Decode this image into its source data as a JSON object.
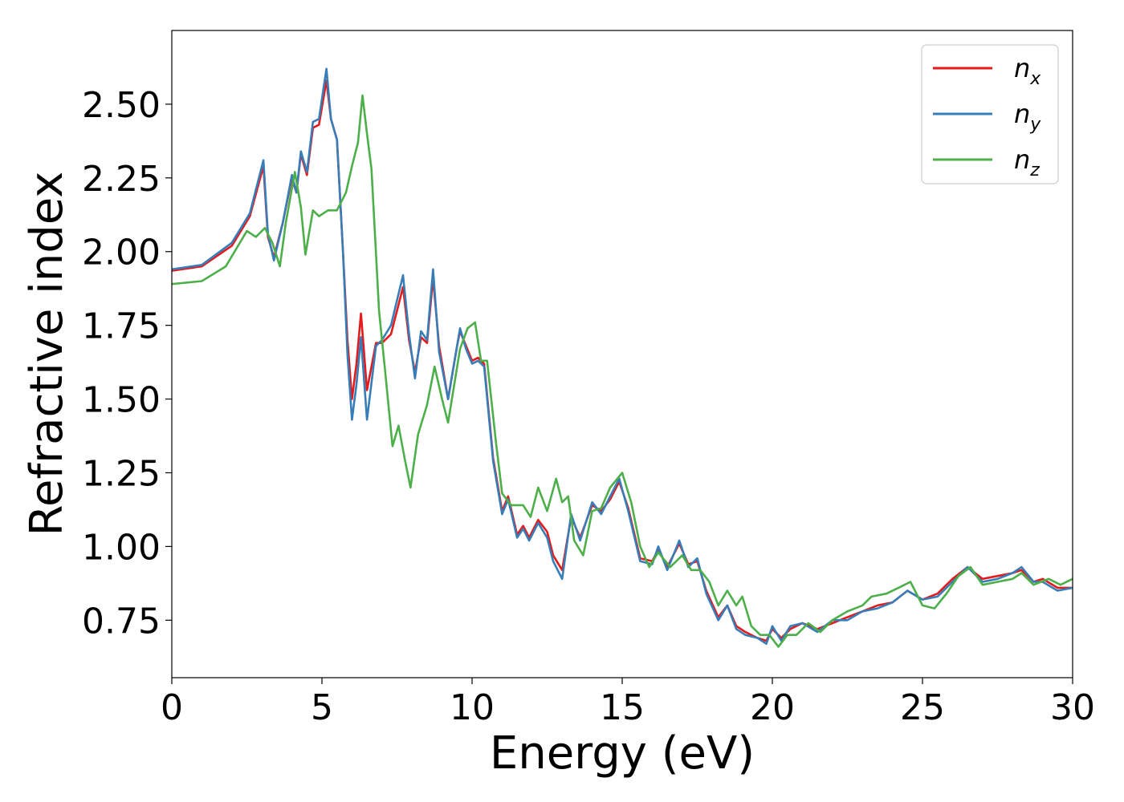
{
  "chart_data": {
    "type": "line",
    "xlabel": "Energy (eV)",
    "ylabel": "Refractive index",
    "xlim": [
      0,
      30
    ],
    "ylim": [
      0.555,
      2.75
    ],
    "xticks": [
      0,
      5,
      10,
      15,
      20,
      25,
      30
    ],
    "xtick_labels": [
      "0",
      "5",
      "10",
      "15",
      "20",
      "25",
      "30"
    ],
    "yticks": [
      0.75,
      1.0,
      1.25,
      1.5,
      1.75,
      2.0,
      2.25,
      2.5
    ],
    "ytick_labels": [
      "0.75",
      "1.00",
      "1.25",
      "1.50",
      "1.75",
      "2.00",
      "2.25",
      "2.50"
    ],
    "grid": false,
    "legend": {
      "placement": "top-right"
    },
    "series": [
      {
        "name": "n_x",
        "legend_base": "n",
        "legend_sub": "x",
        "color": "#e41a1c",
        "points": [
          [
            0,
            1.935
          ],
          [
            1,
            1.95
          ],
          [
            2,
            2.02
          ],
          [
            2.6,
            2.12
          ],
          [
            3.05,
            2.29
          ],
          [
            3.2,
            2.05
          ],
          [
            3.4,
            1.98
          ],
          [
            3.7,
            2.1
          ],
          [
            4.0,
            2.25
          ],
          [
            4.15,
            2.2
          ],
          [
            4.3,
            2.33
          ],
          [
            4.5,
            2.26
          ],
          [
            4.7,
            2.42
          ],
          [
            4.9,
            2.43
          ],
          [
            5.15,
            2.58
          ],
          [
            5.3,
            2.45
          ],
          [
            5.5,
            2.38
          ],
          [
            5.7,
            2.0
          ],
          [
            5.85,
            1.7
          ],
          [
            6.0,
            1.5
          ],
          [
            6.15,
            1.62
          ],
          [
            6.3,
            1.79
          ],
          [
            6.5,
            1.53
          ],
          [
            6.8,
            1.69
          ],
          [
            7.0,
            1.69
          ],
          [
            7.3,
            1.72
          ],
          [
            7.7,
            1.88
          ],
          [
            7.9,
            1.7
          ],
          [
            8.1,
            1.59
          ],
          [
            8.3,
            1.71
          ],
          [
            8.5,
            1.69
          ],
          [
            8.7,
            1.91
          ],
          [
            8.9,
            1.68
          ],
          [
            9.2,
            1.5
          ],
          [
            9.5,
            1.68
          ],
          [
            9.6,
            1.73
          ],
          [
            9.8,
            1.68
          ],
          [
            10.0,
            1.63
          ],
          [
            10.2,
            1.64
          ],
          [
            10.4,
            1.62
          ],
          [
            10.7,
            1.3
          ],
          [
            11.0,
            1.12
          ],
          [
            11.2,
            1.17
          ],
          [
            11.5,
            1.04
          ],
          [
            11.7,
            1.07
          ],
          [
            11.9,
            1.03
          ],
          [
            12.2,
            1.09
          ],
          [
            12.5,
            1.05
          ],
          [
            12.7,
            0.97
          ],
          [
            13.0,
            0.92
          ],
          [
            13.3,
            1.1
          ],
          [
            13.6,
            1.03
          ],
          [
            14.0,
            1.14
          ],
          [
            14.3,
            1.12
          ],
          [
            14.6,
            1.16
          ],
          [
            14.9,
            1.22
          ],
          [
            15.2,
            1.13
          ],
          [
            15.6,
            0.96
          ],
          [
            16.0,
            0.95
          ],
          [
            16.2,
            0.99
          ],
          [
            16.5,
            0.93
          ],
          [
            16.9,
            1.01
          ],
          [
            17.2,
            0.94
          ],
          [
            17.5,
            0.95
          ],
          [
            17.8,
            0.85
          ],
          [
            18.2,
            0.76
          ],
          [
            18.5,
            0.8
          ],
          [
            18.8,
            0.73
          ],
          [
            19.1,
            0.71
          ],
          [
            19.5,
            0.69
          ],
          [
            19.8,
            0.68
          ],
          [
            20.0,
            0.72
          ],
          [
            20.3,
            0.69
          ],
          [
            20.6,
            0.72
          ],
          [
            21.0,
            0.74
          ],
          [
            21.5,
            0.72
          ],
          [
            22.0,
            0.74
          ],
          [
            22.5,
            0.76
          ],
          [
            23.0,
            0.78
          ],
          [
            23.5,
            0.8
          ],
          [
            24.0,
            0.81
          ],
          [
            24.5,
            0.85
          ],
          [
            25.0,
            0.82
          ],
          [
            25.5,
            0.84
          ],
          [
            26.0,
            0.89
          ],
          [
            26.5,
            0.93
          ],
          [
            27.0,
            0.89
          ],
          [
            27.5,
            0.9
          ],
          [
            28.0,
            0.91
          ],
          [
            28.3,
            0.92
          ],
          [
            28.7,
            0.88
          ],
          [
            29.0,
            0.89
          ],
          [
            29.5,
            0.86
          ],
          [
            30.0,
            0.86
          ]
        ]
      },
      {
        "name": "n_y",
        "legend_base": "n",
        "legend_sub": "y",
        "color": "#377eb8",
        "points": [
          [
            0,
            1.94
          ],
          [
            1,
            1.955
          ],
          [
            2,
            2.03
          ],
          [
            2.6,
            2.13
          ],
          [
            3.05,
            2.31
          ],
          [
            3.2,
            2.06
          ],
          [
            3.4,
            1.97
          ],
          [
            3.7,
            2.1
          ],
          [
            4.0,
            2.26
          ],
          [
            4.15,
            2.2
          ],
          [
            4.3,
            2.34
          ],
          [
            4.5,
            2.27
          ],
          [
            4.7,
            2.44
          ],
          [
            4.9,
            2.45
          ],
          [
            5.15,
            2.62
          ],
          [
            5.3,
            2.45
          ],
          [
            5.5,
            2.38
          ],
          [
            5.7,
            2.0
          ],
          [
            5.85,
            1.65
          ],
          [
            6.0,
            1.43
          ],
          [
            6.15,
            1.55
          ],
          [
            6.3,
            1.71
          ],
          [
            6.5,
            1.43
          ],
          [
            6.8,
            1.68
          ],
          [
            7.0,
            1.7
          ],
          [
            7.3,
            1.75
          ],
          [
            7.7,
            1.92
          ],
          [
            7.9,
            1.72
          ],
          [
            8.1,
            1.57
          ],
          [
            8.3,
            1.73
          ],
          [
            8.5,
            1.7
          ],
          [
            8.7,
            1.94
          ],
          [
            8.9,
            1.66
          ],
          [
            9.2,
            1.5
          ],
          [
            9.5,
            1.68
          ],
          [
            9.6,
            1.74
          ],
          [
            9.8,
            1.67
          ],
          [
            10.0,
            1.62
          ],
          [
            10.2,
            1.63
          ],
          [
            10.4,
            1.61
          ],
          [
            10.7,
            1.29
          ],
          [
            11.0,
            1.11
          ],
          [
            11.2,
            1.16
          ],
          [
            11.5,
            1.03
          ],
          [
            11.7,
            1.06
          ],
          [
            11.9,
            1.02
          ],
          [
            12.2,
            1.08
          ],
          [
            12.5,
            1.03
          ],
          [
            12.7,
            0.95
          ],
          [
            13.0,
            0.89
          ],
          [
            13.3,
            1.11
          ],
          [
            13.6,
            1.02
          ],
          [
            14.0,
            1.15
          ],
          [
            14.3,
            1.11
          ],
          [
            14.6,
            1.17
          ],
          [
            14.9,
            1.23
          ],
          [
            15.2,
            1.12
          ],
          [
            15.6,
            0.95
          ],
          [
            16.0,
            0.94
          ],
          [
            16.2,
            1.0
          ],
          [
            16.5,
            0.92
          ],
          [
            16.9,
            1.02
          ],
          [
            17.2,
            0.93
          ],
          [
            17.5,
            0.96
          ],
          [
            17.8,
            0.84
          ],
          [
            18.2,
            0.75
          ],
          [
            18.5,
            0.8
          ],
          [
            18.8,
            0.72
          ],
          [
            19.1,
            0.7
          ],
          [
            19.5,
            0.69
          ],
          [
            19.8,
            0.67
          ],
          [
            20.0,
            0.73
          ],
          [
            20.3,
            0.68
          ],
          [
            20.6,
            0.73
          ],
          [
            21.0,
            0.74
          ],
          [
            21.5,
            0.71
          ],
          [
            22.0,
            0.75
          ],
          [
            22.5,
            0.75
          ],
          [
            23.0,
            0.78
          ],
          [
            23.5,
            0.79
          ],
          [
            24.0,
            0.81
          ],
          [
            24.5,
            0.85
          ],
          [
            25.0,
            0.82
          ],
          [
            25.5,
            0.83
          ],
          [
            26.0,
            0.88
          ],
          [
            26.5,
            0.93
          ],
          [
            27.0,
            0.88
          ],
          [
            27.5,
            0.89
          ],
          [
            28.0,
            0.91
          ],
          [
            28.3,
            0.93
          ],
          [
            28.7,
            0.88
          ],
          [
            29.0,
            0.88
          ],
          [
            29.5,
            0.85
          ],
          [
            30.0,
            0.86
          ]
        ]
      },
      {
        "name": "n_z",
        "legend_base": "n",
        "legend_sub": "z",
        "color": "#4daf4a",
        "points": [
          [
            0,
            1.89
          ],
          [
            1,
            1.9
          ],
          [
            1.8,
            1.95
          ],
          [
            2.5,
            2.07
          ],
          [
            2.8,
            2.05
          ],
          [
            3.1,
            2.08
          ],
          [
            3.35,
            2.03
          ],
          [
            3.6,
            1.95
          ],
          [
            3.8,
            2.1
          ],
          [
            4.1,
            2.27
          ],
          [
            4.3,
            2.15
          ],
          [
            4.45,
            1.99
          ],
          [
            4.7,
            2.14
          ],
          [
            4.9,
            2.12
          ],
          [
            5.2,
            2.14
          ],
          [
            5.5,
            2.14
          ],
          [
            5.8,
            2.2
          ],
          [
            6.0,
            2.29
          ],
          [
            6.2,
            2.37
          ],
          [
            6.35,
            2.53
          ],
          [
            6.5,
            2.4
          ],
          [
            6.65,
            2.28
          ],
          [
            6.9,
            1.8
          ],
          [
            7.1,
            1.6
          ],
          [
            7.35,
            1.34
          ],
          [
            7.55,
            1.41
          ],
          [
            7.75,
            1.3
          ],
          [
            7.95,
            1.2
          ],
          [
            8.2,
            1.38
          ],
          [
            8.5,
            1.48
          ],
          [
            8.75,
            1.61
          ],
          [
            9.0,
            1.5
          ],
          [
            9.2,
            1.42
          ],
          [
            9.6,
            1.67
          ],
          [
            9.85,
            1.74
          ],
          [
            10.1,
            1.76
          ],
          [
            10.3,
            1.63
          ],
          [
            10.5,
            1.63
          ],
          [
            10.8,
            1.35
          ],
          [
            11.0,
            1.18
          ],
          [
            11.3,
            1.14
          ],
          [
            11.7,
            1.14
          ],
          [
            11.95,
            1.1
          ],
          [
            12.2,
            1.2
          ],
          [
            12.5,
            1.12
          ],
          [
            12.8,
            1.23
          ],
          [
            13.0,
            1.15
          ],
          [
            13.2,
            1.17
          ],
          [
            13.4,
            1.02
          ],
          [
            13.7,
            0.97
          ],
          [
            14.0,
            1.12
          ],
          [
            14.3,
            1.13
          ],
          [
            14.6,
            1.2
          ],
          [
            15.0,
            1.25
          ],
          [
            15.3,
            1.15
          ],
          [
            15.6,
            1.0
          ],
          [
            15.9,
            0.93
          ],
          [
            16.2,
            0.98
          ],
          [
            16.6,
            0.93
          ],
          [
            17.0,
            0.97
          ],
          [
            17.3,
            0.92
          ],
          [
            17.6,
            0.92
          ],
          [
            17.9,
            0.88
          ],
          [
            18.2,
            0.8
          ],
          [
            18.5,
            0.85
          ],
          [
            18.8,
            0.8
          ],
          [
            19.0,
            0.83
          ],
          [
            19.3,
            0.73
          ],
          [
            19.6,
            0.7
          ],
          [
            19.9,
            0.7
          ],
          [
            20.2,
            0.66
          ],
          [
            20.5,
            0.7
          ],
          [
            20.8,
            0.7
          ],
          [
            21.2,
            0.74
          ],
          [
            21.6,
            0.71
          ],
          [
            22.0,
            0.75
          ],
          [
            22.5,
            0.78
          ],
          [
            23.0,
            0.8
          ],
          [
            23.3,
            0.83
          ],
          [
            23.8,
            0.84
          ],
          [
            24.2,
            0.86
          ],
          [
            24.6,
            0.88
          ],
          [
            25.0,
            0.8
          ],
          [
            25.4,
            0.79
          ],
          [
            25.8,
            0.84
          ],
          [
            26.2,
            0.9
          ],
          [
            26.6,
            0.93
          ],
          [
            27.0,
            0.87
          ],
          [
            27.5,
            0.88
          ],
          [
            28.0,
            0.89
          ],
          [
            28.3,
            0.91
          ],
          [
            28.7,
            0.87
          ],
          [
            29.2,
            0.89
          ],
          [
            29.6,
            0.87
          ],
          [
            30.0,
            0.89
          ]
        ]
      }
    ]
  }
}
